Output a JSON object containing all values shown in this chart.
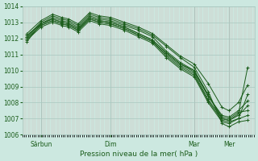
{
  "xlabel": "Pression niveau de la mer( hPa )",
  "bg_color": "#cce8e0",
  "plot_bg_color": "#cce8e0",
  "line_color": "#1a5c1a",
  "grid_major_color": "#a8c8c0",
  "grid_minor_color": "#d4a8a8",
  "tick_label_color": "#1a5c1a",
  "xlabel_color": "#1a5c1a",
  "ylim": [
    1006,
    1014
  ],
  "yticks": [
    1006,
    1007,
    1008,
    1009,
    1010,
    1011,
    1012,
    1013,
    1014
  ],
  "xtick_labels": [
    "Sârbun",
    "Dim",
    "Mar",
    "Mer"
  ],
  "xtick_positions": [
    0.08,
    0.38,
    0.74,
    0.89
  ],
  "vline_positions": [
    0.08,
    0.38,
    0.74,
    0.89
  ],
  "lines": [
    {
      "x": [
        0.02,
        0.08,
        0.13,
        0.17,
        0.2,
        0.24,
        0.29,
        0.33,
        0.38,
        0.44,
        0.5,
        0.56,
        0.62,
        0.68,
        0.74,
        0.8,
        0.86,
        0.89,
        0.93,
        0.97
      ],
      "y": [
        1011.8,
        1012.9,
        1013.3,
        1013.1,
        1013.0,
        1012.7,
        1013.4,
        1013.2,
        1013.1,
        1012.8,
        1012.5,
        1012.1,
        1011.2,
        1010.5,
        1010.0,
        1008.5,
        1007.0,
        1006.9,
        1007.3,
        1010.2
      ]
    },
    {
      "x": [
        0.02,
        0.08,
        0.13,
        0.17,
        0.2,
        0.24,
        0.29,
        0.33,
        0.38,
        0.44,
        0.5,
        0.56,
        0.62,
        0.68,
        0.74,
        0.8,
        0.86,
        0.89,
        0.93,
        0.97
      ],
      "y": [
        1012.0,
        1012.8,
        1013.1,
        1012.9,
        1012.8,
        1012.5,
        1013.2,
        1013.0,
        1012.9,
        1012.6,
        1012.2,
        1011.8,
        1010.9,
        1010.2,
        1009.7,
        1008.1,
        1006.9,
        1006.8,
        1007.0,
        1008.5
      ]
    },
    {
      "x": [
        0.02,
        0.08,
        0.13,
        0.17,
        0.2,
        0.24,
        0.29,
        0.33,
        0.38,
        0.44,
        0.5,
        0.56,
        0.62,
        0.68,
        0.74,
        0.8,
        0.86,
        0.89,
        0.93,
        0.97
      ],
      "y": [
        1012.1,
        1013.0,
        1013.4,
        1013.2,
        1013.1,
        1012.8,
        1013.5,
        1013.3,
        1013.2,
        1012.9,
        1012.6,
        1012.2,
        1011.5,
        1010.8,
        1010.2,
        1008.7,
        1006.7,
        1006.5,
        1006.8,
        1006.9
      ]
    },
    {
      "x": [
        0.02,
        0.08,
        0.13,
        0.17,
        0.2,
        0.24,
        0.29,
        0.33,
        0.38,
        0.44,
        0.5,
        0.56,
        0.62,
        0.68,
        0.74,
        0.8,
        0.86,
        0.89,
        0.93,
        0.97
      ],
      "y": [
        1012.2,
        1012.9,
        1013.2,
        1013.0,
        1012.9,
        1012.6,
        1013.3,
        1013.1,
        1013.0,
        1012.7,
        1012.3,
        1011.9,
        1011.1,
        1010.4,
        1010.0,
        1008.4,
        1007.1,
        1007.0,
        1007.4,
        1007.5
      ]
    },
    {
      "x": [
        0.02,
        0.08,
        0.13,
        0.17,
        0.2,
        0.24,
        0.29,
        0.33,
        0.38,
        0.44,
        0.5,
        0.56,
        0.62,
        0.68,
        0.74,
        0.8,
        0.86,
        0.89,
        0.93,
        0.97
      ],
      "y": [
        1011.9,
        1012.7,
        1013.0,
        1012.8,
        1012.7,
        1012.4,
        1013.1,
        1012.9,
        1012.8,
        1012.5,
        1012.1,
        1011.7,
        1010.8,
        1010.1,
        1009.6,
        1008.0,
        1006.8,
        1006.7,
        1007.0,
        1007.2
      ]
    },
    {
      "x": [
        0.02,
        0.08,
        0.13,
        0.17,
        0.2,
        0.24,
        0.29,
        0.33,
        0.38,
        0.44,
        0.5,
        0.56,
        0.62,
        0.68,
        0.74,
        0.8,
        0.86,
        0.89,
        0.93,
        0.97
      ],
      "y": [
        1012.0,
        1012.8,
        1013.1,
        1012.9,
        1012.8,
        1012.5,
        1013.2,
        1013.0,
        1012.9,
        1012.6,
        1012.2,
        1011.8,
        1011.0,
        1010.3,
        1009.8,
        1008.2,
        1007.0,
        1006.9,
        1007.2,
        1007.8
      ]
    },
    {
      "x": [
        0.02,
        0.08,
        0.13,
        0.17,
        0.2,
        0.24,
        0.29,
        0.33,
        0.38,
        0.44,
        0.5,
        0.56,
        0.62,
        0.68,
        0.74,
        0.8,
        0.86,
        0.89,
        0.93,
        0.97
      ],
      "y": [
        1012.3,
        1013.1,
        1013.5,
        1013.3,
        1013.2,
        1012.9,
        1013.6,
        1013.4,
        1013.3,
        1013.0,
        1012.7,
        1012.3,
        1011.6,
        1010.9,
        1010.4,
        1009.2,
        1007.7,
        1007.5,
        1008.0,
        1009.1
      ]
    },
    {
      "x": [
        0.02,
        0.08,
        0.13,
        0.17,
        0.2,
        0.24,
        0.29,
        0.33,
        0.38,
        0.44,
        0.5,
        0.56,
        0.62,
        0.68,
        0.74,
        0.8,
        0.86,
        0.89,
        0.93,
        0.97
      ],
      "y": [
        1012.1,
        1012.9,
        1013.2,
        1013.0,
        1012.9,
        1012.6,
        1013.3,
        1013.1,
        1013.0,
        1012.7,
        1012.3,
        1011.9,
        1011.1,
        1010.4,
        1009.9,
        1008.4,
        1007.2,
        1007.1,
        1007.5,
        1008.1
      ]
    }
  ]
}
